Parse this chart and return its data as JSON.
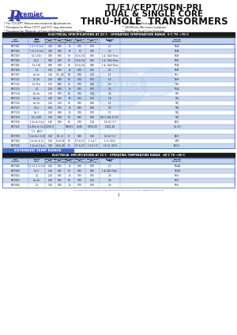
{
  "title_line1": "T1/E1/CEPT/ISDN-PRI",
  "title_line2": "DUAL & SINGLE CORE",
  "title_line3": "THRU-HOLE  TRANSORMERS",
  "bullets_left": [
    "* For T1/CEPT Telecommunications Applications",
    "* Designed to Meet CCITT and FCC requirements",
    "* Designed for Majority of Line Interface Transceiver Chips"
  ],
  "bullets_right": [
    "* Low Profile Packages",
    "* 1500Vrms Minimum Isolation",
    "* Single or Dual Core Package"
  ],
  "section1_title": "ELECTRICAL SPECIFICATIONS AT 25°C - OPERATING TEMPERATURE RANGE  0°C TO +70°C",
  "col_headers": [
    "PART\nNUMBER",
    "Turns\nRatio\nAct Rat\n(+5%)",
    "Inductance\nMin.\n(mH Min.)",
    "DCR/winding\nMax.\n(@ MMax.)",
    "Interwdg\nCapac.\n(pF Max.)",
    "Inductance\nCapac.\n(Ohms Max.)",
    "DCR/winding\nMax.\n(Ohms Max.)",
    "Interwdg\nCapac.\nTYP.",
    "Package\nSchematic"
  ],
  "rows1": [
    [
      "PM-T101",
      "1:1:1 (1.2ct)",
      "1.20",
      "0.50",
      "25",
      "0.70",
      "0.70",
      "1-2",
      "T6/A"
    ],
    [
      "PM-T102",
      "1:1:1 (1.2ct)",
      "2.00",
      "0.50",
      "65",
      "70",
      "0.70",
      "1-2",
      "T6/A"
    ],
    [
      "PM-T103",
      "1:1:1.15ct",
      "0.30",
      "0.65",
      "30",
      "0.4 & 0.4",
      "0.65",
      "1-4, (2&3 Shoo",
      "T5/B"
    ],
    [
      "PM-T104",
      "1:1.2",
      "0.60",
      "0.65",
      "30",
      "0.4 & 0.4",
      "0.65",
      "1-4, (2&3 Shoo",
      "T5/B"
    ],
    [
      "PM-T105",
      "1:1.2.62",
      "0.60",
      "0.40",
      "30",
      "0.4 & 0.4",
      "0.40",
      "1-4, (2&3 Shoo",
      "T5/A"
    ],
    [
      "PM-T106",
      "1:1",
      "1.20",
      "0.50",
      "25",
      "0.70",
      "0.70",
      "1-5",
      "T6/B"
    ],
    [
      "PM-T107",
      "1ct:2ct",
      "1.20",
      "30 - 55",
      "30",
      "0.70",
      "1.20",
      "1-5",
      "T6/C"
    ],
    [
      "PM-T111",
      "1:1.36",
      "1.20",
      "0.60",
      "30",
      "0.70",
      "0.70",
      "5-6",
      "T6/H"
    ],
    [
      "PM-T112",
      "1:1.15ct",
      "1.50",
      "0.65",
      "35",
      "0.70",
      "0.90",
      "2-6",
      "T6/J"
    ],
    [
      "PM-T113",
      "1:1",
      "1.20",
      "0.50",
      "25",
      "0.70",
      "0.70",
      "2-6",
      "T6/J4"
    ],
    [
      "PM-T114",
      "1ct:2ct",
      "1.20",
      "0.55",
      "30",
      "0.70",
      "1.10",
      "2-6",
      "T6/I"
    ],
    [
      "PM-T115",
      "1ct:2ct",
      "2.00",
      "0.50",
      "50",
      "0.70",
      "1.40",
      "2-6",
      "T6/J"
    ],
    [
      "PM-T116",
      "2ct:1ct",
      "1.20",
      "1.50",
      "30",
      "0.60",
      "0.40",
      "1-5",
      "T6/J"
    ],
    [
      "PM-T117",
      "1:1ct",
      "0.06",
      "0.75",
      "25",
      "0.60",
      "0.60",
      "2-6",
      "T6/J"
    ],
    [
      "PM-T119",
      "1ct:1",
      "1.20",
      "0.60",
      "25",
      "0.70",
      "0.70",
      "1-5",
      "T6/J"
    ],
    [
      "PM-T120",
      "1:1:1.268",
      "1.20",
      "0.40",
      "30",
      "0.90",
      "0.90",
      "2-4,(1-1&5-6,3-5)",
      "T6/J"
    ],
    [
      "PM-T158",
      "1:2ct & 1:2ct",
      "1.20",
      "0.50",
      "30",
      "0.70",
      "1.10",
      "14-12 / 5-7",
      "AT/D"
    ],
    [
      "PM-T121",
      "1:1,45ct & 1:1ct",
      "1.50/1.9",
      "",
      "0.60/0.5",
      "35/40",
      "0.70/0.20",
      "1-10/1-20",
      "14-12 /"
    ],
    [
      "",
      "5-7   AT/O",
      "",
      "",
      "",
      "",
      "",
      "",
      ""
    ],
    [
      "PM-T199",
      "1:2ct & 1:1.36",
      "1.20",
      "0.4...8",
      "35",
      "0.60",
      "1.60",
      "14-12 / 5-7",
      "AT/8"
    ],
    [
      "PM-T100",
      "1ct:2ct & 1:1",
      "1.20",
      "55 & 50",
      "30",
      "0.7 & 0.7",
      "1.1 & 7",
      "1-3 / 18-6",
      "AT/F"
    ],
    [
      "PM-T118",
      "1:2ct & 1:2ct",
      "2.00",
      "40 & 40",
      "45",
      "0.7 & 0.7",
      "1.0 & 1.0",
      "14-12 / 10-8",
      "AT/G,L"
    ]
  ],
  "section2_title": "EXTENDED TEMP RANGE",
  "section3_title": "ELECTRICAL SPECIFICATIONS AT 25°C - OPERATING TEMPERATURE RANGE  -40°C TO +85°C",
  "col_headers2": [
    "PART\nNUMBER",
    "TURNS\nRATIO",
    "Inductance\nMin.\n(mH Min.)",
    "DCR/winding\nMax.\n(Ohm Max.)",
    "Interwdg\nCapac.\n(pF Max.)",
    "Inductance\nMin.\n(Ohms Max.)",
    "DCR/winding\nMax.\n(Ohms Max.)",
    "Interwdg\nCapac.\nTYP.",
    "Package\nSchematic"
  ],
  "rows2": [
    [
      "PM-T108",
      "1:1:1:1:1 (1.2ct)",
      "1.20",
      "0.55",
      "25",
      "0.70",
      "0.70",
      "1-2",
      "T6/6A"
    ],
    [
      "PM-T109",
      "1:1.2",
      "1.20",
      "0.65",
      "30",
      "0.40",
      "0.65",
      "1-4,(2&3 Sho)",
      "T6/5B"
    ],
    [
      "PM-T062",
      "1:1",
      "1.20",
      "0.55",
      "25",
      "0.70",
      "0.70",
      "2-6",
      "T6/6"
    ],
    [
      "PM-T063",
      "1ct:2ct",
      "1.20",
      "0.55",
      "30",
      "0.70",
      "1.10",
      "2-6",
      "T6/6"
    ],
    [
      "PM-T064",
      "1:1",
      "1.20",
      "0.50",
      "25",
      "0.70",
      "0.70",
      "2-6",
      "T6/6"
    ]
  ],
  "footer": "5404 RAVENS RUN, OAK FOREST, CA, 60452  TEL: (708) 672-0511  FAX: (800) 672-0512  www.premiermagnetics.com",
  "page": "1",
  "bg_color": "#ffffff",
  "dark_bar_color": "#1a1a1a",
  "row_bg_blue": "#ccd9f0",
  "row_bg_white": "#ffffff",
  "table_border": "#4472c4",
  "ext_temp_bg": "#4472c4",
  "watermark_color": "#a8c8e8",
  "logo_color": "#3a3a9a",
  "title_color": "#111111"
}
